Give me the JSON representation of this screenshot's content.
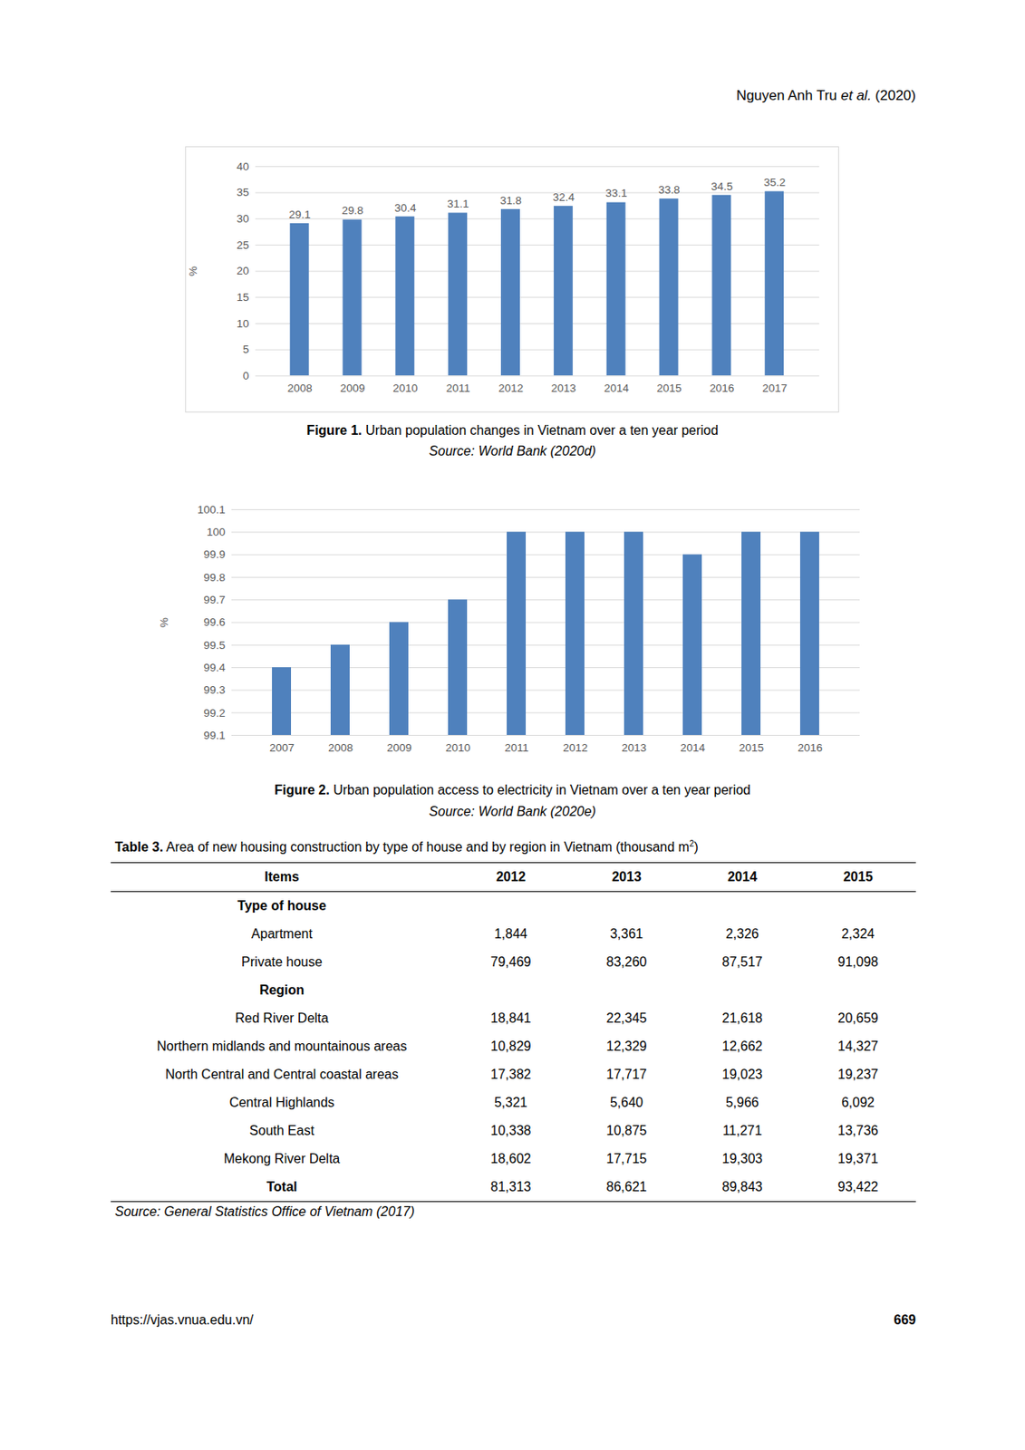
{
  "header": {
    "authors": "Nguyen Anh Tru",
    "etal": "et al.",
    "year": "(2020)"
  },
  "chart_data": [
    {
      "type": "bar",
      "categories": [
        "2008",
        "2009",
        "2010",
        "2011",
        "2012",
        "2013",
        "2014",
        "2015",
        "2016",
        "2017"
      ],
      "values": [
        29.1,
        29.8,
        30.4,
        31.1,
        31.8,
        32.4,
        33.1,
        33.8,
        34.5,
        35.2
      ],
      "color": "#4f81bd",
      "ylabel": "%",
      "ylim": [
        0,
        40
      ],
      "yticks": [
        0,
        5,
        10,
        15,
        20,
        25,
        30,
        35,
        40
      ],
      "grid": true,
      "data_labels": true
    },
    {
      "type": "bar",
      "categories": [
        "2007",
        "2008",
        "2009",
        "2010",
        "2011",
        "2012",
        "2013",
        "2014",
        "2015",
        "2016"
      ],
      "values": [
        99.4,
        99.5,
        99.6,
        99.7,
        100,
        100,
        100,
        99.9,
        100,
        100
      ],
      "color": "#4f81bd",
      "ylabel": "%",
      "ylim": [
        99.1,
        100.1
      ],
      "yticks": [
        99.1,
        99.2,
        99.3,
        99.4,
        99.5,
        99.6,
        99.7,
        99.8,
        99.9,
        100,
        100.1
      ],
      "grid": true,
      "data_labels": false
    }
  ],
  "figure_captions": [
    {
      "label": "Figure 1.",
      "text": "Urban population changes in Vietnam over a ten year period",
      "source": "Source: World Bank (2020d)"
    },
    {
      "label": "Figure 2.",
      "text": "Urban population access to electricity in Vietnam over a ten year period",
      "source": "Source: World Bank (2020e)"
    }
  ],
  "table": {
    "label": "Table 3.",
    "title": "Area of new housing construction by type of house and by region in Vietnam (thousand m",
    "title_sup": "2",
    "title_end": ")",
    "columns": [
      "Items",
      "2012",
      "2013",
      "2014",
      "2015"
    ],
    "rows": [
      [
        "Type of house"
      ],
      [
        "Apartment",
        "1,844",
        "3,361",
        "2,326",
        "2,324"
      ],
      [
        "Private house",
        "79,469",
        "83,260",
        "87,517",
        "91,098"
      ],
      [
        "Region"
      ],
      [
        "Red River Delta",
        "18,841",
        "22,345",
        "21,618",
        "20,659"
      ],
      [
        "Northern midlands and mountainous areas",
        "10,829",
        "12,329",
        "12,662",
        "14,327"
      ],
      [
        "North Central and Central coastal areas",
        "17,382",
        "17,717",
        "19,023",
        "19,237"
      ],
      [
        "Central Highlands",
        "5,321",
        "5,640",
        "5,966",
        "6,092"
      ],
      [
        "South East",
        "10,338",
        "10,875",
        "11,271",
        "13,736"
      ],
      [
        "Mekong River Delta",
        "18,602",
        "17,715",
        "19,303",
        "19,371"
      ]
    ],
    "total_row": [
      "Total",
      "81,313",
      "86,621",
      "89,843",
      "93,422"
    ],
    "source": "Source: General Statistics Office of Vietnam (2017)"
  },
  "footer": {
    "url": "https://vjas.vnua.edu.vn/",
    "page": "669"
  }
}
